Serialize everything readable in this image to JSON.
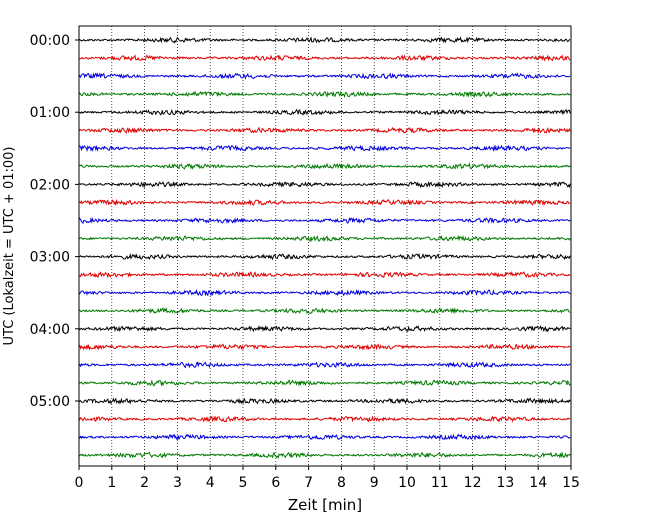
{
  "chart_data": {
    "type": "line",
    "chart_kind": "seismogram helicorder",
    "xlabel": "Zeit  [min]",
    "ylabel": "UTC (Lokalzeit = UTC + 01:00)",
    "xlim": [
      0,
      15
    ],
    "x_ticks": [
      "0",
      "1",
      "2",
      "3",
      "4",
      "5",
      "6",
      "7",
      "8",
      "9",
      "10",
      "11",
      "12",
      "13",
      "14",
      "15"
    ],
    "y_ticks": [
      "00:00",
      "01:00",
      "02:00",
      "03:00",
      "04:00",
      "05:00"
    ],
    "vertical_grid": "dotted, every minute",
    "trace_interval_minutes": 15,
    "trace_count": 24,
    "trace_colors": [
      "#000000",
      "#e00000",
      "#0000dd",
      "#007a00"
    ],
    "trace_start_times": [
      "00:00",
      "00:15",
      "00:30",
      "00:45",
      "01:00",
      "01:15",
      "01:30",
      "01:45",
      "02:00",
      "02:15",
      "02:30",
      "02:45",
      "03:00",
      "03:15",
      "03:30",
      "03:45",
      "04:00",
      "04:15",
      "04:30",
      "04:45",
      "05:00",
      "05:15",
      "05:30",
      "05:45"
    ],
    "grid": true,
    "legend": "none"
  }
}
